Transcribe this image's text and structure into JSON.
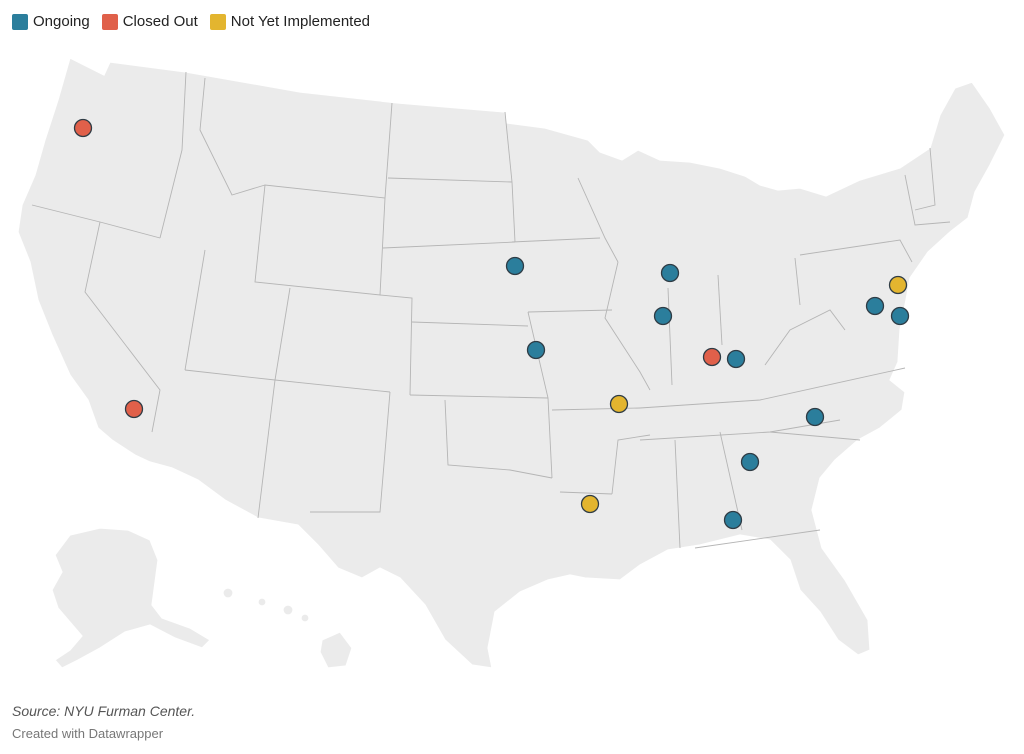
{
  "legend": [
    {
      "label": "Ongoing",
      "color": "#2b7e9c"
    },
    {
      "label": "Closed Out",
      "color": "#e0604a"
    },
    {
      "label": "Not Yet Implemented",
      "color": "#e3b52f"
    }
  ],
  "colors": {
    "land": "#ebebeb",
    "border": "#b5b5b5"
  },
  "source": "Source: NYU Furman Center.",
  "credit": "Created with Datawrapper"
}
